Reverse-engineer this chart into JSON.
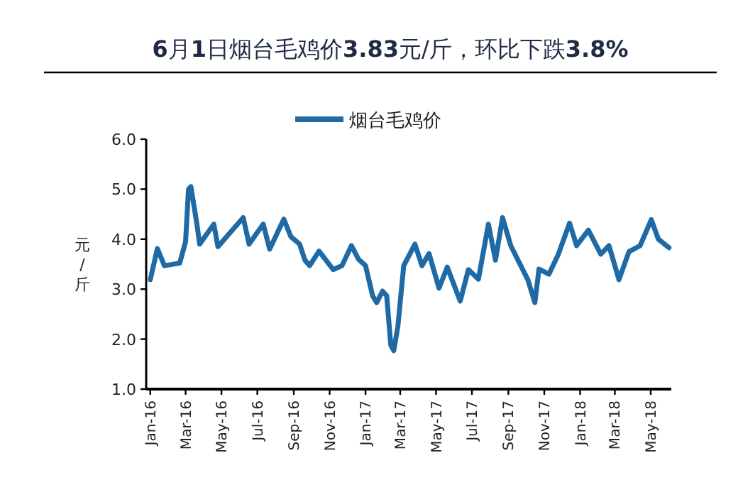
{
  "chart_data": {
    "type": "line",
    "title": "**6**月**1**日烟台毛鸡价**3.83**元/斤，环比下跌**3.8%**",
    "ylabel": "元/斤",
    "legend": "top",
    "x": [
      "2016-01-01",
      "2016-01-13",
      "2016-01-25",
      "2016-02-20",
      "2016-03-01",
      "2016-03-06",
      "2016-03-10",
      "2016-03-20",
      "2016-03-25",
      "2016-04-18",
      "2016-04-25",
      "2016-06-07",
      "2016-06-17",
      "2016-07-11",
      "2016-07-22",
      "2016-08-15",
      "2016-08-27",
      "2016-09-11",
      "2016-09-20",
      "2016-09-28",
      "2016-10-14",
      "2016-11-07",
      "2016-11-22",
      "2016-12-08",
      "2016-12-20",
      "2017-01-01",
      "2017-01-13",
      "2017-01-20",
      "2017-01-30",
      "2017-02-06",
      "2017-02-13",
      "2017-02-18",
      "2017-02-25",
      "2017-03-07",
      "2017-03-26",
      "2017-04-07",
      "2017-04-19",
      "2017-05-06",
      "2017-05-20",
      "2017-06-11",
      "2017-06-25",
      "2017-07-12",
      "2017-07-29",
      "2017-08-10",
      "2017-08-22",
      "2017-09-05",
      "2017-09-22",
      "2017-10-04",
      "2017-10-16",
      "2017-10-23",
      "2017-11-09",
      "2017-11-25",
      "2017-12-14",
      "2017-12-26",
      "2018-01-15",
      "2018-02-05",
      "2018-02-19",
      "2018-03-08",
      "2018-03-25",
      "2018-04-13",
      "2018-05-02",
      "2018-05-14",
      "2018-06-01"
    ],
    "series": [
      {
        "name": "烟台毛鸡价",
        "color": "#1f6aa5",
        "values": [
          3.19,
          3.81,
          3.47,
          3.52,
          3.95,
          5.0,
          5.05,
          4.32,
          3.9,
          4.3,
          3.85,
          4.43,
          3.9,
          4.3,
          3.8,
          4.4,
          4.05,
          3.9,
          3.58,
          3.47,
          3.76,
          3.39,
          3.47,
          3.87,
          3.6,
          3.47,
          2.87,
          2.73,
          2.96,
          2.87,
          1.88,
          1.77,
          2.25,
          3.47,
          3.9,
          3.47,
          3.71,
          3.02,
          3.44,
          2.76,
          3.39,
          3.2,
          4.3,
          3.58,
          4.43,
          3.87,
          3.47,
          3.19,
          2.73,
          3.4,
          3.3,
          3.7,
          4.32,
          3.87,
          4.18,
          3.7,
          3.87,
          3.19,
          3.75,
          3.87,
          4.39,
          4.0,
          3.83
        ]
      }
    ],
    "xlim": [
      "2015-12-25",
      "2018-06-05"
    ],
    "xticks": [
      {
        "value": "2016-01",
        "label": "Jan-16"
      },
      {
        "value": "2016-03",
        "label": "Mar-16"
      },
      {
        "value": "2016-05",
        "label": "May-16"
      },
      {
        "value": "2016-07",
        "label": "Jul-16"
      },
      {
        "value": "2016-09",
        "label": "Sep-16"
      },
      {
        "value": "2016-11",
        "label": "Nov-16"
      },
      {
        "value": "2017-01",
        "label": "Jan-17"
      },
      {
        "value": "2017-03",
        "label": "Mar-17"
      },
      {
        "value": "2017-05",
        "label": "May-17"
      },
      {
        "value": "2017-07",
        "label": "Jul-17"
      },
      {
        "value": "2017-09",
        "label": "Sep-17"
      },
      {
        "value": "2017-11",
        "label": "Nov-17"
      },
      {
        "value": "2018-01",
        "label": "Jan-18"
      },
      {
        "value": "2018-03",
        "label": "Mar-18"
      },
      {
        "value": "2018-05",
        "label": "May-18"
      }
    ],
    "ylim": [
      1,
      6
    ],
    "yticks": [
      {
        "value": 1,
        "label": "1.0"
      },
      {
        "value": 2,
        "label": "2.0"
      },
      {
        "value": 3,
        "label": "3.0"
      },
      {
        "value": 4,
        "label": "4.0"
      },
      {
        "value": 5,
        "label": "5.0"
      },
      {
        "value": 6,
        "label": "6.0"
      }
    ]
  }
}
